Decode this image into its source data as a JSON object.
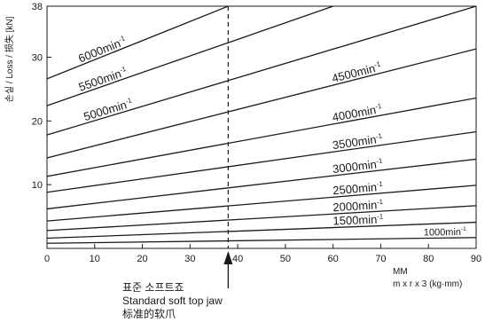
{
  "chart_data": {
    "type": "line",
    "title": "",
    "ylabel": "손실 / Loss / 损失 [kN]",
    "xlabel": "MM",
    "xlabel_sub": "m x r x 3 (kg·mm)",
    "xlim": [
      0,
      90
    ],
    "ylim": [
      0,
      38
    ],
    "xticks": [
      0,
      10,
      20,
      30,
      40,
      50,
      60,
      70,
      80,
      90
    ],
    "yticks": [
      10,
      20,
      30,
      38
    ],
    "grid": false,
    "reference_line": {
      "x": 38,
      "style": "dashed",
      "label_lines": [
        "표준 소프트죠",
        "Standard soft top jaw",
        "标准的软爪"
      ]
    },
    "series": [
      {
        "name": "6000",
        "unit": "min",
        "exp": "-1",
        "x": [
          0,
          38
        ],
        "y": [
          26.6,
          38
        ]
      },
      {
        "name": "5500",
        "unit": "min",
        "exp": "-1",
        "x": [
          0,
          60
        ],
        "y": [
          22.4,
          38
        ]
      },
      {
        "name": "5000",
        "unit": "min",
        "exp": "-1",
        "x": [
          0,
          90
        ],
        "y": [
          17.8,
          38
        ]
      },
      {
        "name": "4500",
        "unit": "min",
        "exp": "-1",
        "x": [
          0,
          90
        ],
        "y": [
          14.2,
          31.3
        ]
      },
      {
        "name": "4000",
        "unit": "min",
        "exp": "-1",
        "x": [
          0,
          90
        ],
        "y": [
          11.3,
          23.6
        ]
      },
      {
        "name": "3500",
        "unit": "min",
        "exp": "-1",
        "x": [
          0,
          90
        ],
        "y": [
          8.8,
          18.3
        ]
      },
      {
        "name": "3000",
        "unit": "min",
        "exp": "-1",
        "x": [
          0,
          90
        ],
        "y": [
          6.2,
          14.0
        ]
      },
      {
        "name": "2500",
        "unit": "min",
        "exp": "-1",
        "x": [
          0,
          90
        ],
        "y": [
          4.3,
          9.9
        ]
      },
      {
        "name": "2000",
        "unit": "min",
        "exp": "-1",
        "x": [
          0,
          90
        ],
        "y": [
          2.8,
          6.7
        ]
      },
      {
        "name": "1500",
        "unit": "min",
        "exp": "-1",
        "x": [
          0,
          90
        ],
        "y": [
          1.6,
          4.1
        ]
      },
      {
        "name": "1000",
        "unit": "min",
        "exp": "-1",
        "x": [
          0,
          90
        ],
        "y": [
          0.8,
          1.7
        ]
      }
    ]
  }
}
